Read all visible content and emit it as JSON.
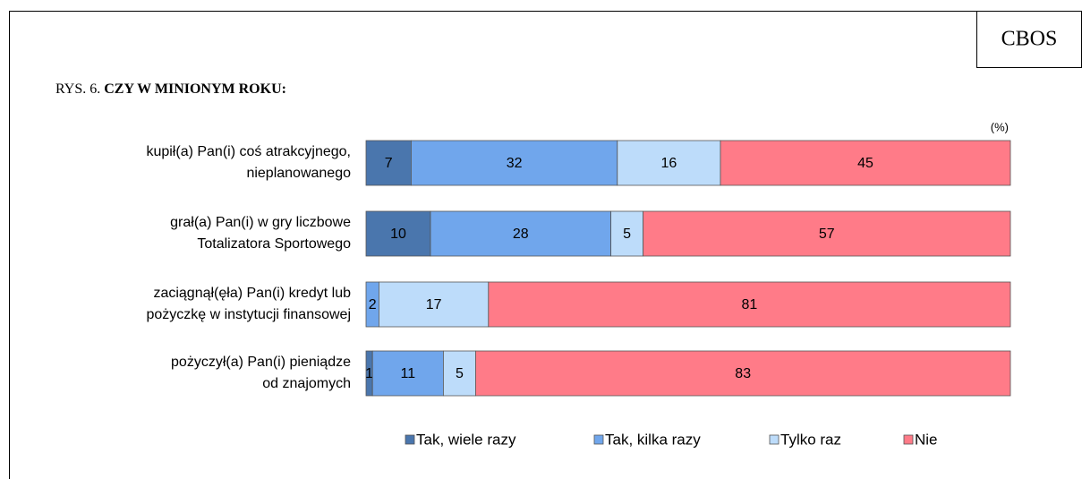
{
  "chart_data": {
    "type": "stacked_bar_horizontal",
    "source": "CBOS",
    "title_prefix": "RYS. 6.",
    "title": "CZY W MINIONYM ROKU:",
    "unit_label": "(%)",
    "categories": [
      [
        "kupił(a) Pan(i) coś atrakcyjnego,",
        "nieplanowanego"
      ],
      [
        "grał(a) Pan(i) w gry liczbowe",
        "Totalizatora Sportowego"
      ],
      [
        "zaciągnął(ęła) Pan(i) kredyt lub",
        "pożyczkę w instytucji finansowej"
      ],
      [
        "pożyczył(a) Pan(i) pieniądze",
        "od znajomych"
      ]
    ],
    "series": [
      {
        "name": "Tak, wiele razy",
        "color": "#4a76ad",
        "label_color": "#ffffff",
        "values": [
          7,
          10,
          null,
          1
        ]
      },
      {
        "name": "Tak, kilka razy",
        "color": "#70a6ec",
        "label_color": "#000000",
        "values": [
          32,
          28,
          2,
          11
        ]
      },
      {
        "name": "Tylko raz",
        "color": "#bddcfa",
        "label_color": "#000000",
        "values": [
          16,
          5,
          17,
          5
        ]
      },
      {
        "name": "Nie",
        "color": "#ff7b88",
        "label_color": "#000000",
        "values": [
          45,
          57,
          81,
          83
        ]
      }
    ],
    "xlim": [
      0,
      100
    ],
    "legend": "bottom"
  }
}
